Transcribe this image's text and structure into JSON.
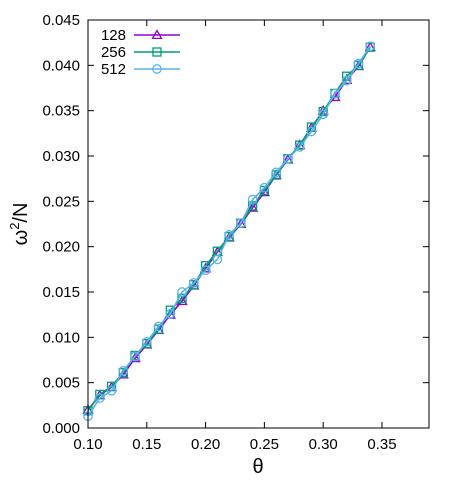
{
  "chart_data": {
    "type": "line",
    "xlabel": "θ",
    "ylabel_base": "ω",
    "ylabel_sup": "2",
    "ylabel_rest": "/N",
    "xlim": [
      0.1,
      0.39
    ],
    "ylim": [
      0.0,
      0.045
    ],
    "xticks": [
      0.1,
      0.15,
      0.2,
      0.25,
      0.3,
      0.35
    ],
    "xtick_labels": [
      "0.10",
      "0.15",
      "0.20",
      "0.25",
      "0.30",
      "0.35"
    ],
    "yticks": [
      0.0,
      0.005,
      0.01,
      0.015,
      0.02,
      0.025,
      0.03,
      0.035,
      0.04,
      0.045
    ],
    "ytick_labels": [
      "0.000",
      "0.005",
      "0.010",
      "0.015",
      "0.020",
      "0.025",
      "0.030",
      "0.035",
      "0.040",
      "0.045"
    ],
    "legend_position": "top-left",
    "series": [
      {
        "name": "128",
        "color": "#9400d3",
        "marker": "triangle",
        "x": [
          0.1,
          0.11,
          0.12,
          0.13,
          0.14,
          0.15,
          0.16,
          0.17,
          0.18,
          0.19,
          0.2,
          0.21,
          0.22,
          0.23,
          0.24,
          0.25,
          0.26,
          0.27,
          0.28,
          0.29,
          0.3,
          0.31,
          0.32,
          0.33,
          0.34
        ],
        "y": [
          0.002,
          0.0036,
          0.0045,
          0.0059,
          0.0077,
          0.0092,
          0.0108,
          0.0125,
          0.014,
          0.0157,
          0.0176,
          0.0194,
          0.021,
          0.0225,
          0.0243,
          0.026,
          0.0279,
          0.0296,
          0.0312,
          0.0331,
          0.035,
          0.0365,
          0.0384,
          0.0399,
          0.042
        ]
      },
      {
        "name": "256",
        "color": "#009e73",
        "marker": "square",
        "x": [
          0.1,
          0.11,
          0.12,
          0.13,
          0.14,
          0.15,
          0.16,
          0.17,
          0.18,
          0.19,
          0.2,
          0.21,
          0.22,
          0.23,
          0.24,
          0.25,
          0.26,
          0.27,
          0.28,
          0.29,
          0.3,
          0.31,
          0.32,
          0.33,
          0.34
        ],
        "y": [
          0.0019,
          0.0037,
          0.0046,
          0.0061,
          0.008,
          0.0093,
          0.0109,
          0.013,
          0.0143,
          0.0158,
          0.0179,
          0.0195,
          0.0211,
          0.0226,
          0.0245,
          0.0262,
          0.0279,
          0.0297,
          0.0312,
          0.0332,
          0.0349,
          0.0369,
          0.0388,
          0.04,
          0.042
        ]
      },
      {
        "name": "512",
        "color": "#56b4e9",
        "marker": "circle",
        "x": [
          0.1,
          0.11,
          0.12,
          0.13,
          0.14,
          0.15,
          0.16,
          0.17,
          0.18,
          0.19,
          0.2,
          0.21,
          0.22,
          0.23,
          0.24,
          0.25,
          0.26,
          0.27,
          0.28,
          0.29,
          0.3,
          0.31,
          0.32,
          0.33,
          0.34
        ],
        "y": [
          0.0013,
          0.0033,
          0.0041,
          0.0063,
          0.0079,
          0.0095,
          0.0112,
          0.0126,
          0.015,
          0.016,
          0.0174,
          0.0186,
          0.0213,
          0.0226,
          0.0252,
          0.0265,
          0.0282,
          0.0297,
          0.031,
          0.0327,
          0.0346,
          0.0369,
          0.0383,
          0.0402,
          0.0421
        ]
      }
    ]
  }
}
